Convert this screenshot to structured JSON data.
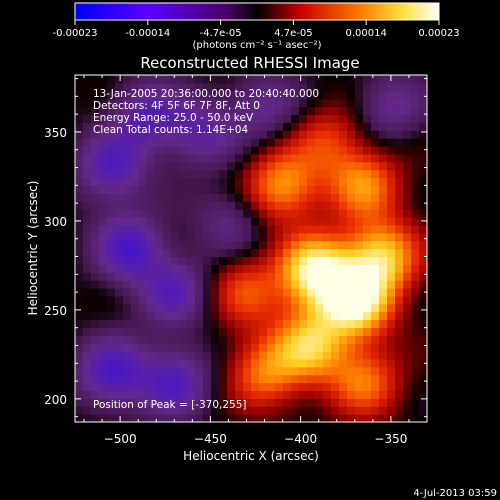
{
  "colorbar": {
    "tick_labels": [
      "-0.00023",
      "-0.00014",
      "-4.7e-05",
      "4.7e-05",
      "0.00014",
      "0.00023"
    ],
    "units": "(photons cm⁻² s⁻¹ asec⁻²)",
    "colormap": [
      "#0000ff",
      "#6a00ff",
      "#ff0000",
      "#ff8c00",
      "#ffff80",
      "#ffffff"
    ]
  },
  "info": {
    "time": "13-Jan-2005 20:36:00.000 to 20:40:40.000",
    "detectors": "Detectors: 4F 5F 6F 7F 8F, Att 0",
    "energy": "Energy Range: 25.0 - 50.0 keV",
    "clean": "Clean    Total counts: 1.14E+04",
    "peak": "Position of Peak = [-370,255]"
  },
  "footer": {
    "date": "4-Jul-2013 03:59"
  },
  "chart_data": {
    "type": "heatmap",
    "title": "Reconstructed RHESSI Image",
    "xlabel": "Heliocentric X (arcsec)",
    "ylabel": "Heliocentric Y (arcsec)",
    "xlim": [
      -525,
      -330
    ],
    "ylim": [
      187,
      382
    ],
    "xticks": [
      -500,
      -450,
      -400,
      -350
    ],
    "yticks": [
      200,
      250,
      300,
      350
    ],
    "peak": [
      -370,
      255
    ],
    "bright_sources": [
      {
        "x": -370,
        "y": 255,
        "value": 1.0
      },
      {
        "x": -392,
        "y": 272,
        "value": 0.95
      },
      {
        "x": -355,
        "y": 280,
        "value": 0.75
      },
      {
        "x": -395,
        "y": 230,
        "value": 0.7
      },
      {
        "x": -410,
        "y": 320,
        "value": 0.6
      },
      {
        "x": -365,
        "y": 320,
        "value": 0.55
      },
      {
        "x": -420,
        "y": 215,
        "value": 0.5
      },
      {
        "x": -365,
        "y": 210,
        "value": 0.5
      },
      {
        "x": -430,
        "y": 260,
        "value": 0.4
      },
      {
        "x": -385,
        "y": 345,
        "value": 0.35
      }
    ],
    "dark_sources": [
      {
        "x": -505,
        "y": 330,
        "value": -0.45
      },
      {
        "x": -495,
        "y": 285,
        "value": -0.5
      },
      {
        "x": -470,
        "y": 260,
        "value": -0.4
      },
      {
        "x": -505,
        "y": 215,
        "value": -0.5
      },
      {
        "x": -470,
        "y": 210,
        "value": -0.45
      },
      {
        "x": -485,
        "y": 360,
        "value": -0.4
      },
      {
        "x": -455,
        "y": 350,
        "value": -0.35
      },
      {
        "x": -420,
        "y": 365,
        "value": -0.3
      },
      {
        "x": -350,
        "y": 365,
        "value": -0.3
      },
      {
        "x": -440,
        "y": 300,
        "value": -0.25
      }
    ]
  }
}
